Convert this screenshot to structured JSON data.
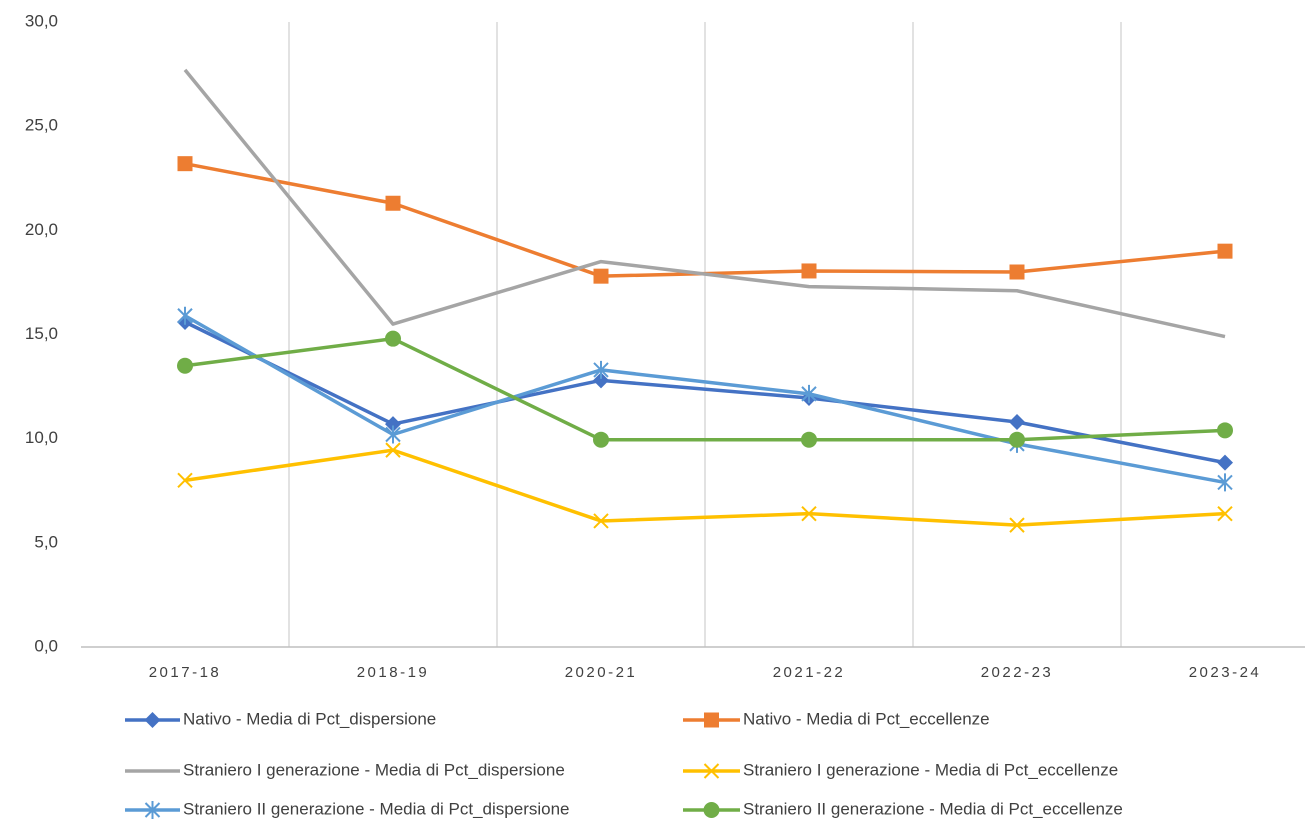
{
  "chart_data": {
    "type": "line",
    "categories": [
      "2017-18",
      "2018-19",
      "2020-21",
      "2021-22",
      "2022-23",
      "2023-24"
    ],
    "series": [
      {
        "name": "Nativo - Media di Pct_dispersione",
        "color": "#4472c4",
        "marker": "diamond",
        "values": [
          15.6,
          10.7,
          12.8,
          11.95,
          10.8,
          8.85
        ]
      },
      {
        "name": "Nativo - Media di Pct_eccellenze",
        "color": "#ed7d31",
        "marker": "square",
        "values": [
          23.2,
          21.3,
          17.8,
          18.05,
          18.0,
          19.0
        ]
      },
      {
        "name": "Straniero I generazione - Media di Pct_dispersione",
        "color": "#a5a5a5",
        "marker": "none",
        "values": [
          27.7,
          15.5,
          18.5,
          17.3,
          17.1,
          14.9
        ]
      },
      {
        "name": "Straniero I generazione - Media di Pct_eccellenze",
        "color": "#ffc000",
        "marker": "x",
        "values": [
          8.0,
          9.45,
          6.05,
          6.4,
          5.85,
          6.4
        ]
      },
      {
        "name": "Straniero II generazione - Media di Pct_dispersione",
        "color": "#5b9bd5",
        "marker": "star",
        "values": [
          15.9,
          10.2,
          13.3,
          12.15,
          9.75,
          7.9
        ]
      },
      {
        "name": "Straniero II generazione - Media di Pct_eccellenze",
        "color": "#70ad47",
        "marker": "circle",
        "values": [
          13.5,
          14.8,
          9.95,
          9.95,
          9.95,
          10.4
        ]
      }
    ],
    "ylim": [
      0,
      30
    ],
    "yticks": [
      {
        "value": 0,
        "label": "0,0"
      },
      {
        "value": 5,
        "label": "5,0"
      },
      {
        "value": 10,
        "label": "10,0"
      },
      {
        "value": 15,
        "label": "15,0"
      },
      {
        "value": 20,
        "label": "20,0"
      },
      {
        "value": 25,
        "label": "25,0"
      },
      {
        "value": 30,
        "label": "30,0"
      }
    ],
    "grid": "x",
    "legend": "bottom"
  }
}
